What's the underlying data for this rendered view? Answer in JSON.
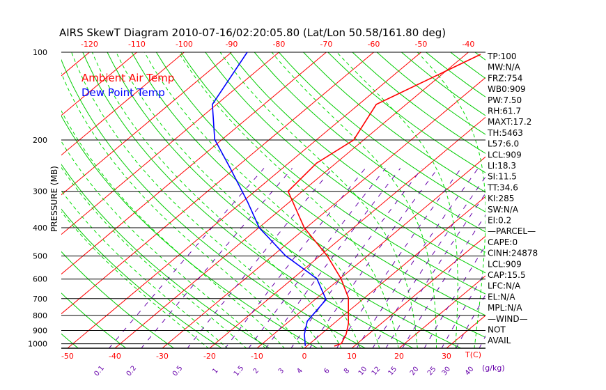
{
  "chart_data": {
    "type": "line",
    "subtype": "skew-t log-p",
    "title": "AIRS SkewT Diagram 2010-07-16/02:20:05.80 (Lat/Lon 50.58/161.80 deg)",
    "ylabel": "PRESSURE (MB)",
    "xlabel": "T(C)",
    "mixing_ratio_unit": "(g/kg)",
    "pressure_range_mb": [
      100,
      1040
    ],
    "pressure_ticks": [
      100,
      200,
      300,
      400,
      500,
      600,
      700,
      800,
      900,
      1000
    ],
    "bottom_temp_ticks": [
      -50,
      -40,
      -30,
      -20,
      -10,
      0,
      10,
      20,
      30
    ],
    "top_temp_ticks": [
      -120,
      -110,
      -100,
      -90,
      -80,
      -70,
      -60,
      -50,
      -40
    ],
    "mixing_ratio_ticks": [
      "0.1",
      "0.2",
      "0.5",
      "1",
      "1.5",
      "2",
      "3",
      "4",
      "6",
      "8",
      "10",
      "12",
      "15",
      "20",
      "25",
      "30",
      "40"
    ],
    "legend": [
      {
        "label": "Ambient Air Temp",
        "color": "#ff0000"
      },
      {
        "label": "Dew Point Temp",
        "color": "#0000ff"
      }
    ],
    "legend_position": "top-left",
    "series": [
      {
        "name": "Ambient Air Temp",
        "color": "#ff0000",
        "pressure": [
          101.7,
          151,
          200,
          240,
          300,
          400,
          499,
          598,
          696,
          853,
          928,
          997,
          1019
        ],
        "temperature": [
          -36.9,
          -46.3,
          -42.1,
          -44.1,
          -43.0,
          -30.4,
          -18.5,
          -9.8,
          -3.4,
          3.1,
          5.3,
          6.6,
          5.8
        ]
      },
      {
        "name": "Dew Point Temp",
        "color": "#0000ff",
        "pressure": [
          100,
          151,
          199,
          248,
          326,
          400,
          499,
          598,
          705,
          837,
          928,
          1017
        ],
        "temperature": [
          -86.7,
          -80.9,
          -71.6,
          -61.4,
          -48.9,
          -39.9,
          -27.3,
          -14.9,
          -7.7,
          -6.2,
          -3.5,
          -0.4
        ]
      }
    ],
    "colors": {
      "isotherm": "#ff0000",
      "dry_adiabat": "#00cc00",
      "moist_adiabat": "#00dd00",
      "mixing_ratio": "#6600aa",
      "isobar": "#000000"
    }
  },
  "indices": [
    "TP:100",
    "MW:N/A",
    "FRZ:754",
    "WB0:909",
    "PW:7.50",
    "RH:61.7",
    "MAXT:17.2",
    "TH:5463",
    "L57:6.0",
    "LCL:909",
    "LI:18.3",
    "SI:11.5",
    "TT:34.6",
    "KI:285",
    "SW:N/A",
    "EI:0.2",
    "—PARCEL—",
    "CAPE:0",
    "CINH:24878",
    "LCL:909",
    "CAP:15.5",
    "LFC:N/A",
    "EL:N/A",
    "MPL:N/A",
    "—WIND—",
    "NOT",
    "AVAIL"
  ]
}
